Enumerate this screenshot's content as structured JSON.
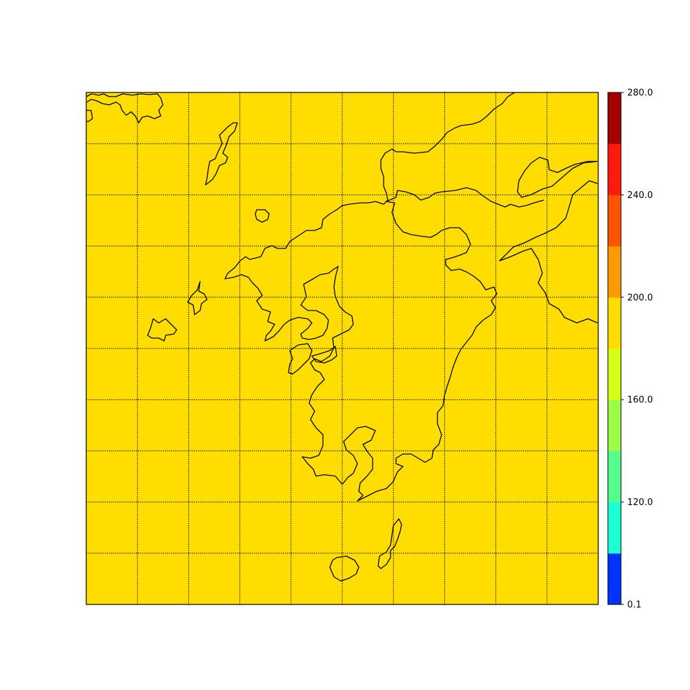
{
  "map": {
    "fill_color": "#FFDD00",
    "coastline_color": "#000000",
    "gridlines": {
      "style": "dotted",
      "color": "#000000",
      "count_x": 9,
      "count_y": 9
    },
    "region": "Kyushu and surrounding islands"
  },
  "colorbar": {
    "tick_labels": [
      "0.1",
      "120.0",
      "160.0",
      "200.0",
      "240.0",
      "280.0"
    ],
    "bins": [
      {
        "value": 0.1,
        "color": "#0033FF"
      },
      {
        "value": 100,
        "color": "#1AFFD6"
      },
      {
        "value": 120,
        "color": "#55FF8F"
      },
      {
        "value": 140,
        "color": "#9BFF4A"
      },
      {
        "value": 160,
        "color": "#D6FF16"
      },
      {
        "value": 180,
        "color": "#FFDD00"
      },
      {
        "value": 200,
        "color": "#FF9B00"
      },
      {
        "value": 220,
        "color": "#FF5500"
      },
      {
        "value": 240,
        "color": "#FF1A10"
      },
      {
        "value": 260,
        "color": "#A50000"
      }
    ]
  }
}
